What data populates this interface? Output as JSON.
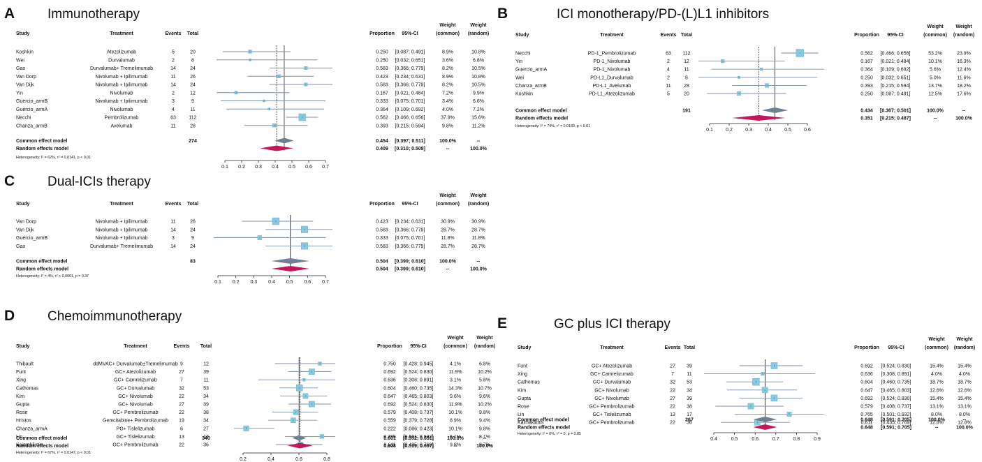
{
  "columns": {
    "study": "Study",
    "treatment": "Treatment",
    "events": "Events",
    "total": "Total",
    "proportion": "Proportion",
    "ci": "95%-CI",
    "weight_common": [
      "Weight",
      "(common)"
    ],
    "weight_random": [
      "Weight",
      "(random)"
    ]
  },
  "chart_data": [
    {
      "type": "forest",
      "label": "A",
      "title": "Immunotherapy",
      "xlim": [
        0.1,
        0.7
      ],
      "ticks": [
        0.1,
        0.2,
        0.3,
        0.4,
        0.5,
        0.6,
        0.7
      ],
      "studies": [
        {
          "study": "Koshkin",
          "treatment": "Atezolizumab",
          "events": "5",
          "total": "20",
          "prop": 0.25,
          "lo": 0.087,
          "hi": 0.491,
          "proportion": "0.250",
          "ci": "[0.087; 0.491]",
          "wc": "8.9%",
          "wr": "10.8%"
        },
        {
          "study": "Wei",
          "treatment": "Durvalumab",
          "events": "2",
          "total": "8",
          "prop": 0.25,
          "lo": 0.032,
          "hi": 0.651,
          "proportion": "0.250",
          "ci": "[0.032; 0.651]",
          "wc": "3.6%",
          "wr": "6.8%"
        },
        {
          "study": "Gao",
          "treatment": "Durvalumab+ Tremelimumab",
          "events": "14",
          "total": "24",
          "prop": 0.583,
          "lo": 0.366,
          "hi": 0.779,
          "proportion": "0.583",
          "ci": "[0.366; 0.779]",
          "wc": "8.2%",
          "wr": "10.5%"
        },
        {
          "study": "Van Dorp",
          "treatment": "Nivolumab + Ipilimumab",
          "events": "11",
          "total": "26",
          "prop": 0.423,
          "lo": 0.234,
          "hi": 0.631,
          "proportion": "0.423",
          "ci": "[0.234; 0.631]",
          "wc": "8.9%",
          "wr": "10.8%"
        },
        {
          "study": "Van Dijk",
          "treatment": "Nivolumab + Ipilimumab",
          "events": "14",
          "total": "24",
          "prop": 0.583,
          "lo": 0.366,
          "hi": 0.779,
          "proportion": "0.583",
          "ci": "[0.366; 0.779]",
          "wc": "8.2%",
          "wr": "10.5%"
        },
        {
          "study": "Yin",
          "treatment": "Nivolumab",
          "events": "2",
          "total": "12",
          "prop": 0.167,
          "lo": 0.021,
          "hi": 0.484,
          "proportion": "0.167",
          "ci": "[0.021; 0.484]",
          "wc": "7.2%",
          "wr": "9.9%"
        },
        {
          "study": "Guercio_armB",
          "treatment": "Nivolumab + Ipilimumab",
          "events": "3",
          "total": "9",
          "prop": 0.333,
          "lo": 0.075,
          "hi": 0.701,
          "proportion": "0.333",
          "ci": "[0.075; 0.701]",
          "wc": "3.4%",
          "wr": "6.6%"
        },
        {
          "study": "Guercio_armA",
          "treatment": "Nivolumab",
          "events": "4",
          "total": "11",
          "prop": 0.364,
          "lo": 0.109,
          "hi": 0.692,
          "proportion": "0.364",
          "ci": "[0.109; 0.692]",
          "wc": "4.0%",
          "wr": "7.2%"
        },
        {
          "study": "Necchi",
          "treatment": "Pembrolizumab",
          "events": "63",
          "total": "112",
          "prop": 0.562,
          "lo": 0.466,
          "hi": 0.656,
          "proportion": "0.562",
          "ci": "[0.466; 0.656]",
          "wc": "37.9%",
          "wr": "15.6%"
        },
        {
          "study": "Chanza_armB",
          "treatment": "Avelumab",
          "events": "11",
          "total": "28",
          "prop": 0.393,
          "lo": 0.215,
          "hi": 0.594,
          "proportion": "0.393",
          "ci": "[0.215; 0.594]",
          "wc": "9.8%",
          "wr": "11.2%"
        }
      ],
      "common": {
        "label": "Common effect model",
        "total": "274",
        "prop": 0.454,
        "lo": 0.397,
        "hi": 0.511,
        "proportion": "0.454",
        "ci": "[0.397; 0.511]",
        "wc": "100.0%",
        "wr": "--"
      },
      "random": {
        "label": "Random effects model",
        "prop": 0.409,
        "lo": 0.31,
        "hi": 0.508,
        "proportion": "0.409",
        "ci": "[0.310; 0.508]",
        "wc": "--",
        "wr": "100.0%"
      },
      "heterogeneity": "Heterogeneity: I² = 62%, τ² = 0.0141, p < 0.01"
    },
    {
      "type": "forest",
      "label": "B",
      "title": "ICI monotherapy/PD-(L)L1 inhibitors",
      "xlim": [
        0.1,
        0.6
      ],
      "ticks": [
        0.1,
        0.2,
        0.3,
        0.4,
        0.5,
        0.6
      ],
      "studies": [
        {
          "study": "Necchi",
          "treatment": "PD-1_Pembrolizumab",
          "events": "63",
          "total": "112",
          "prop": 0.562,
          "lo": 0.466,
          "hi": 0.656,
          "proportion": "0.562",
          "ci": "[0.466; 0.656]",
          "wc": "53.2%",
          "wr": "23.9%"
        },
        {
          "study": "Yin",
          "treatment": "PD-1_Nivolumab",
          "events": "2",
          "total": "12",
          "prop": 0.167,
          "lo": 0.021,
          "hi": 0.484,
          "proportion": "0.167",
          "ci": "[0.021; 0.484]",
          "wc": "10.1%",
          "wr": "16.3%"
        },
        {
          "study": "Guercio_armA",
          "treatment": "PD-1_Nivolumab",
          "events": "4",
          "total": "11",
          "prop": 0.364,
          "lo": 0.109,
          "hi": 0.692,
          "proportion": "0.364",
          "ci": "[0.109; 0.692]",
          "wc": "5.6%",
          "wr": "12.4%"
        },
        {
          "study": "Wei",
          "treatment": "PD-L1_Durvalumab",
          "events": "2",
          "total": "8",
          "prop": 0.25,
          "lo": 0.032,
          "hi": 0.651,
          "proportion": "0.250",
          "ci": "[0.032; 0.651]",
          "wc": "5.0%",
          "wr": "11.6%"
        },
        {
          "study": "Chanza_armB",
          "treatment": "PD-L1_Avelumab",
          "events": "11",
          "total": "28",
          "prop": 0.393,
          "lo": 0.215,
          "hi": 0.594,
          "proportion": "0.393",
          "ci": "[0.215; 0.594]",
          "wc": "13.7%",
          "wr": "18.2%"
        },
        {
          "study": "Koshkin",
          "treatment": "PD-L1_Atezolizumab",
          "events": "5",
          "total": "20",
          "prop": 0.25,
          "lo": 0.087,
          "hi": 0.491,
          "proportion": "0.250",
          "ci": "[0.087; 0.491]",
          "wc": "12.5%",
          "wr": "17.6%"
        }
      ],
      "common": {
        "label": "Common effect model",
        "total": "191",
        "prop": 0.434,
        "lo": 0.367,
        "hi": 0.501,
        "proportion": "0.434",
        "ci": "[0.367; 0.501]",
        "wc": "100.0%",
        "wr": "--"
      },
      "random": {
        "label": "Random effects model",
        "prop": 0.351,
        "lo": 0.215,
        "hi": 0.487,
        "proportion": "0.351",
        "ci": "[0.215; 0.487]",
        "wc": "--",
        "wr": "100.0%"
      },
      "heterogeneity": "Heterogeneity: I² = 74%, τ² = 0.0180, p < 0.01"
    },
    {
      "type": "forest",
      "label": "C",
      "title": "Dual-ICIs therapy",
      "xlim": [
        0.1,
        0.7
      ],
      "ticks": [
        0.1,
        0.2,
        0.3,
        0.4,
        0.5,
        0.6,
        0.7
      ],
      "studies": [
        {
          "study": "Van Dorp",
          "treatment": "Nivolumab + Ipilimumab",
          "events": "11",
          "total": "26",
          "prop": 0.423,
          "lo": 0.234,
          "hi": 0.631,
          "proportion": "0.423",
          "ci": "[0.234; 0.631]",
          "wc": "30.9%",
          "wr": "30.9%"
        },
        {
          "study": "Van Dijk",
          "treatment": "Nivolumab + Ipilimumab",
          "events": "14",
          "total": "24",
          "prop": 0.583,
          "lo": 0.366,
          "hi": 0.779,
          "proportion": "0.583",
          "ci": "[0.366; 0.779]",
          "wc": "28.7%",
          "wr": "28.7%"
        },
        {
          "study": "Guercio_armB",
          "treatment": "Nivolumab + Ipilimumab",
          "events": "3",
          "total": "9",
          "prop": 0.333,
          "lo": 0.075,
          "hi": 0.701,
          "proportion": "0.333",
          "ci": "[0.075; 0.701]",
          "wc": "11.8%",
          "wr": "11.8%"
        },
        {
          "study": "Gao",
          "treatment": "Durvalumab+ Tremelimumab",
          "events": "14",
          "total": "24",
          "prop": 0.583,
          "lo": 0.366,
          "hi": 0.779,
          "proportion": "0.583",
          "ci": "[0.366; 0.779]",
          "wc": "28.7%",
          "wr": "28.7%"
        }
      ],
      "common": {
        "label": "Common effect model",
        "total": "83",
        "prop": 0.504,
        "lo": 0.399,
        "hi": 0.61,
        "proportion": "0.504",
        "ci": "[0.399; 0.610]",
        "wc": "100.0%",
        "wr": "--"
      },
      "random": {
        "label": "Random effects model",
        "prop": 0.504,
        "lo": 0.399,
        "hi": 0.61,
        "proportion": "0.504",
        "ci": "[0.399; 0.610]",
        "wc": "--",
        "wr": "100.0%"
      },
      "heterogeneity": "Heterogeneity: I² = 4%, τ² < 0.0001, p = 0.37"
    },
    {
      "type": "forest",
      "label": "D",
      "title": "Chemoimmunotherapy",
      "xlim": [
        0.2,
        0.8
      ],
      "ticks": [
        0.2,
        0.4,
        0.6,
        0.8
      ],
      "studies": [
        {
          "study": "Thibault",
          "treatment": "ddMVAC+ Durvalumab±Tremelimumab",
          "events": "9",
          "total": "12",
          "prop": 0.75,
          "lo": 0.428,
          "hi": 0.945,
          "proportion": "0.750",
          "ci": "[0.428; 0.945]",
          "wc": "4.1%",
          "wr": "6.8%"
        },
        {
          "study": "Funt",
          "treatment": "GC+ Atezolizumab",
          "events": "27",
          "total": "39",
          "prop": 0.692,
          "lo": 0.524,
          "hi": 0.83,
          "proportion": "0.692",
          "ci": "[0.524; 0.830]",
          "wc": "11.9%",
          "wr": "10.2%"
        },
        {
          "study": "Xing",
          "treatment": "GC+ Camrelizumab",
          "events": "7",
          "total": "11",
          "prop": 0.636,
          "lo": 0.308,
          "hi": 0.891,
          "proportion": "0.636",
          "ci": "[0.308; 0.891]",
          "wc": "3.1%",
          "wr": "5.8%"
        },
        {
          "study": "Cathomas",
          "treatment": "GC+ Durvalumab",
          "events": "32",
          "total": "53",
          "prop": 0.604,
          "lo": 0.46,
          "hi": 0.735,
          "proportion": "0.604",
          "ci": "[0.460; 0.735]",
          "wc": "14.3%",
          "wr": "10.7%"
        },
        {
          "study": "Kim",
          "treatment": "GC+ Nivolumab",
          "events": "22",
          "total": "34",
          "prop": 0.647,
          "lo": 0.465,
          "hi": 0.803,
          "proportion": "0.647",
          "ci": "[0.465; 0.803]",
          "wc": "9.6%",
          "wr": "9.6%"
        },
        {
          "study": "Gupta",
          "treatment": "GC+ Nivolumab",
          "events": "27",
          "total": "39",
          "prop": 0.692,
          "lo": 0.524,
          "hi": 0.83,
          "proportion": "0.692",
          "ci": "[0.524; 0.830]",
          "wc": "11.9%",
          "wr": "10.2%"
        },
        {
          "study": "Rose",
          "treatment": "GC+ Pembrolizumab",
          "events": "22",
          "total": "38",
          "prop": 0.579,
          "lo": 0.408,
          "hi": 0.737,
          "proportion": "0.579",
          "ci": "[0.408; 0.737]",
          "wc": "10.1%",
          "wr": "9.8%"
        },
        {
          "study": "Hristos",
          "treatment": "Gemcitabine+ Pembrolizumab",
          "events": "19",
          "total": "34",
          "prop": 0.559,
          "lo": 0.379,
          "hi": 0.728,
          "proportion": "0.559",
          "ci": "[0.379; 0.728]",
          "wc": "8.9%",
          "wr": "9.4%"
        },
        {
          "study": "Chanza_armA",
          "treatment": "PG+ Tislelizumab",
          "events": "6",
          "total": "27",
          "prop": 0.222,
          "lo": 0.086,
          "hi": 0.423,
          "proportion": "0.222",
          "ci": "[0.086; 0.423]",
          "wc": "10.1%",
          "wr": "9.8%"
        },
        {
          "study": "Lin",
          "treatment": "GC+ Tislelizumab",
          "events": "13",
          "total": "17",
          "prop": 0.765,
          "lo": 0.501,
          "hi": 0.932,
          "proportion": "0.765",
          "ci": "[0.501; 0.932]",
          "wc": "6.1%",
          "wr": "8.1%"
        },
        {
          "study": "Kaimakliotis",
          "treatment": "GC+ Pembrolizumab",
          "events": "22",
          "total": "36",
          "prop": 0.611,
          "lo": 0.435,
          "hi": 0.769,
          "proportion": "0.611",
          "ci": "[0.435; 0.769]",
          "wc": "9.8%",
          "wr": "9.7%"
        }
      ],
      "common": {
        "label": "Common effect model",
        "total": "340",
        "prop": 0.601,
        "lo": 0.552,
        "hi": 0.651,
        "proportion": "0.601",
        "ci": "[0.552; 0.651]",
        "wc": "100.0%",
        "wr": "--"
      },
      "random": {
        "label": "Random effects model",
        "prop": 0.608,
        "lo": 0.519,
        "hi": 0.697,
        "proportion": "0.608",
        "ci": "[0.519; 0.697]",
        "wc": "--",
        "wr": "100.0%"
      },
      "heterogeneity": "Heterogeneity: I² = 67%, τ² = 0.0147, p < 0.01"
    },
    {
      "type": "forest",
      "label": "E",
      "title": "GC plus ICI therapy",
      "xlim": [
        0.4,
        0.9
      ],
      "ticks": [
        0.4,
        0.5,
        0.6,
        0.7,
        0.8,
        0.9
      ],
      "studies": [
        {
          "study": "Funt",
          "treatment": "GC+ Atezolizumab",
          "events": "27",
          "total": "39",
          "prop": 0.692,
          "lo": 0.524,
          "hi": 0.83,
          "proportion": "0.692",
          "ci": "[0.524; 0.830]",
          "wc": "15.4%",
          "wr": "15.4%"
        },
        {
          "study": "Xing",
          "treatment": "GC+ Camrelizumab",
          "events": "7",
          "total": "11",
          "prop": 0.636,
          "lo": 0.308,
          "hi": 0.891,
          "proportion": "0.636",
          "ci": "[0.308; 0.891]",
          "wc": "4.0%",
          "wr": "4.0%"
        },
        {
          "study": "Cathomas",
          "treatment": "GC+ Durvalumab",
          "events": "32",
          "total": "53",
          "prop": 0.604,
          "lo": 0.46,
          "hi": 0.735,
          "proportion": "0.604",
          "ci": "[0.460; 0.735]",
          "wc": "18.7%",
          "wr": "18.7%"
        },
        {
          "study": "Kim",
          "treatment": "GC+ Nivolumab",
          "events": "22",
          "total": "34",
          "prop": 0.647,
          "lo": 0.465,
          "hi": 0.803,
          "proportion": "0.647",
          "ci": "[0.465; 0.803]",
          "wc": "12.6%",
          "wr": "12.6%"
        },
        {
          "study": "Gupta",
          "treatment": "GC+ Nivolumab",
          "events": "27",
          "total": "39",
          "prop": 0.692,
          "lo": 0.524,
          "hi": 0.83,
          "proportion": "0.692",
          "ci": "[0.524; 0.830]",
          "wc": "15.4%",
          "wr": "15.4%"
        },
        {
          "study": "Rose",
          "treatment": "GC+ Pembrolizumab",
          "events": "22",
          "total": "38",
          "prop": 0.579,
          "lo": 0.408,
          "hi": 0.737,
          "proportion": "0.579",
          "ci": "[0.408; 0.737]",
          "wc": "13.1%",
          "wr": "13.1%"
        },
        {
          "study": "Lin",
          "treatment": "GC+ Tislelizumab",
          "events": "13",
          "total": "17",
          "prop": 0.765,
          "lo": 0.501,
          "hi": 0.932,
          "proportion": "0.765",
          "ci": "[0.501; 0.932]",
          "wc": "8.0%",
          "wr": "8.0%"
        },
        {
          "study": "Kaimakliotis",
          "treatment": "GC+ Pembrolizumab",
          "events": "22",
          "total": "36",
          "prop": 0.611,
          "lo": 0.435,
          "hi": 0.769,
          "proportion": "0.611",
          "ci": "[0.435; 0.769]",
          "wc": "12.8%",
          "wr": "12.8%"
        }
      ],
      "common": {
        "label": "Common effect model",
        "total": "267",
        "prop": 0.648,
        "lo": 0.591,
        "hi": 0.705,
        "proportion": "0.648",
        "ci": "[0.591; 0.705]",
        "wc": "100.0%",
        "wr": "--"
      },
      "random": {
        "label": "Random effects model",
        "prop": 0.648,
        "lo": 0.591,
        "hi": 0.705,
        "proportion": "0.648",
        "ci": "[0.591; 0.705]",
        "wc": "--",
        "wr": "100.0%"
      },
      "heterogeneity": "Heterogeneity: I² = 0%, τ² = 0, p = 0.85"
    }
  ],
  "colors": {
    "square_fill": "#87c9e0",
    "square_stroke": "#6aa9c0",
    "ci_line": "#7f8fa6",
    "common_diamond": "#6f8090",
    "random_diamond": "#c2185b",
    "text": "#111111"
  }
}
